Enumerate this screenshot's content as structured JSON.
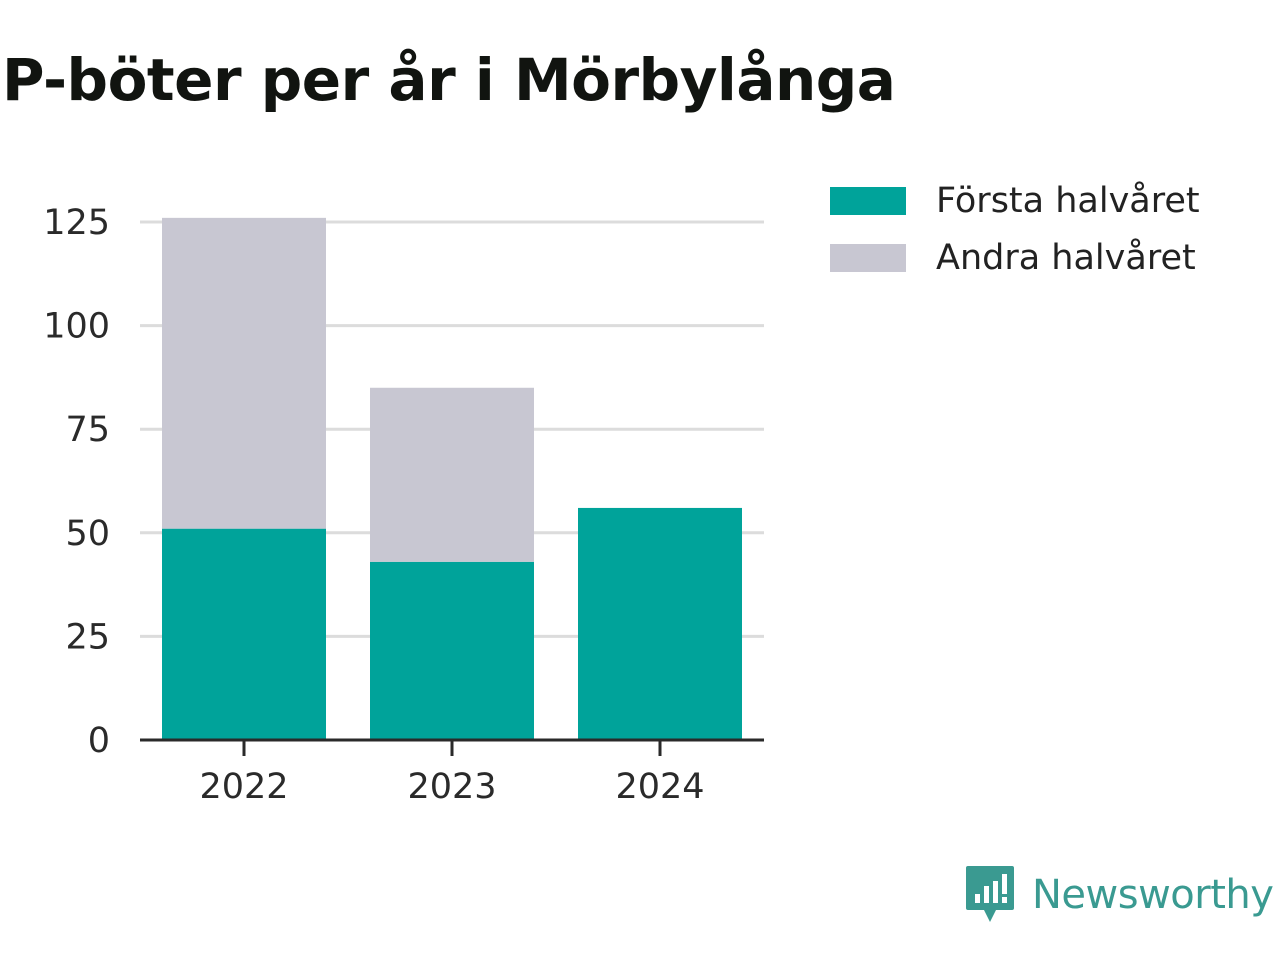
{
  "chart_data": {
    "type": "bar",
    "stacked": true,
    "title": "P-böter per år i Mörbylånga",
    "categories": [
      "2022",
      "2023",
      "2024"
    ],
    "series": [
      {
        "name": "Första halvåret",
        "values": [
          51,
          43,
          56
        ],
        "color": "#00a39a"
      },
      {
        "name": "Andra halvåret",
        "values": [
          75,
          42,
          null
        ],
        "color": "#c8c7d2"
      }
    ],
    "yticks": [
      0,
      25,
      50,
      75,
      100,
      125
    ],
    "ylim": [
      0,
      125
    ],
    "grid": true,
    "legend": "top-right"
  },
  "brand": {
    "name": "Newsworthy",
    "icon": "newsworthy-logo-icon",
    "color": "#3a9a91"
  }
}
